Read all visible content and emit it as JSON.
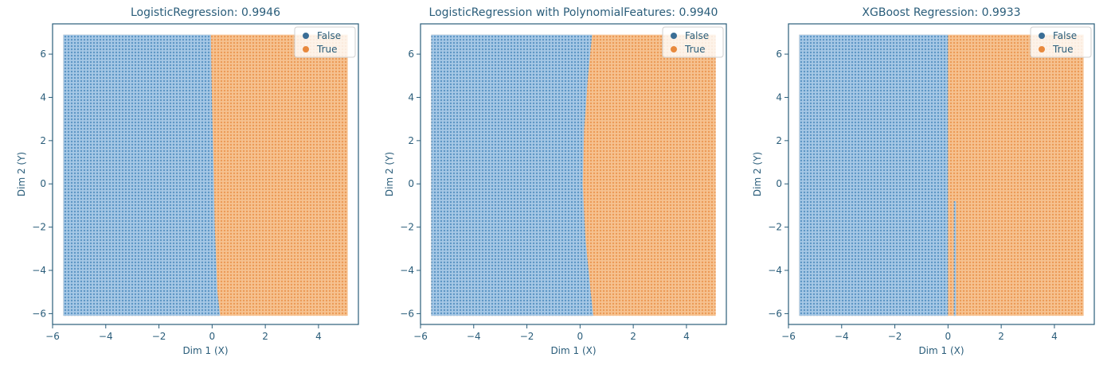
{
  "colors": {
    "false_fill": "#a6c8e6",
    "false_dot": "#3e7fb5",
    "true_fill": "#f6c290",
    "true_dot": "#e8893d",
    "axis": "#2a5d7a",
    "legend_false": "#3b6e96",
    "legend_true": "#e8893d"
  },
  "chart_data": [
    {
      "type": "scatter",
      "title": "LogisticRegression: 0.9946",
      "xlabel": "Dim 1 (X)",
      "ylabel": "Dim 2 (Y)",
      "xlim": [
        -6.0,
        5.5
      ],
      "ylim": [
        -6.5,
        7.4
      ],
      "xticks": [
        -6,
        -4,
        -2,
        0,
        2,
        4
      ],
      "yticks": [
        -6,
        -4,
        -2,
        0,
        2,
        4,
        6
      ],
      "xtick_labels": [
        "−6",
        "−4",
        "−2",
        "0",
        "2",
        "4"
      ],
      "ytick_labels": [
        "−6",
        "−4",
        "−2",
        "0",
        "2",
        "4",
        "6"
      ],
      "grid": false,
      "legend": {
        "position": "top-right",
        "entries": [
          "False",
          "True"
        ]
      },
      "grid_region": {
        "x": [
          -5.6,
          5.1
        ],
        "y": [
          -6.1,
          6.9
        ]
      },
      "boundary": [
        {
          "y": 6.9,
          "x": -0.05
        },
        {
          "y": 3.5,
          "x": 0.0
        },
        {
          "y": 1.0,
          "x": 0.05
        },
        {
          "y": -2.0,
          "x": 0.1
        },
        {
          "y": -5.0,
          "x": 0.2
        },
        {
          "y": -6.1,
          "x": 0.3
        }
      ],
      "series": [
        {
          "name": "False",
          "region": "x < boundary"
        },
        {
          "name": "True",
          "region": "x > boundary"
        }
      ]
    },
    {
      "type": "scatter",
      "title": "LogisticRegression with PolynomialFeatures: 0.9940",
      "xlabel": "Dim 1 (X)",
      "ylabel": "Dim 2 (Y)",
      "xlim": [
        -6.0,
        5.5
      ],
      "ylim": [
        -6.5,
        7.4
      ],
      "xticks": [
        -6,
        -4,
        -2,
        0,
        2,
        4
      ],
      "yticks": [
        -6,
        -4,
        -2,
        0,
        2,
        4,
        6
      ],
      "xtick_labels": [
        "−6",
        "−4",
        "−2",
        "0",
        "2",
        "4"
      ],
      "ytick_labels": [
        "−6",
        "−4",
        "−2",
        "0",
        "2",
        "4",
        "6"
      ],
      "grid": false,
      "legend": {
        "position": "top-right",
        "entries": [
          "False",
          "True"
        ]
      },
      "grid_region": {
        "x": [
          -5.6,
          5.1
        ],
        "y": [
          -6.1,
          6.9
        ]
      },
      "boundary": [
        {
          "y": 6.9,
          "x": 0.45
        },
        {
          "y": 5.0,
          "x": 0.3
        },
        {
          "y": 2.5,
          "x": 0.15
        },
        {
          "y": 0.0,
          "x": 0.1
        },
        {
          "y": -2.5,
          "x": 0.2
        },
        {
          "y": -5.0,
          "x": 0.4
        },
        {
          "y": -6.1,
          "x": 0.5
        }
      ],
      "series": [
        {
          "name": "False",
          "region": "x < boundary"
        },
        {
          "name": "True",
          "region": "x > boundary"
        }
      ]
    },
    {
      "type": "scatter",
      "title": "XGBoost Regression: 0.9933",
      "xlabel": "Dim 1 (X)",
      "ylabel": "Dim 2 (Y)",
      "xlim": [
        -6.0,
        5.5
      ],
      "ylim": [
        -6.5,
        7.4
      ],
      "xticks": [
        -6,
        -4,
        -2,
        0,
        2,
        4
      ],
      "yticks": [
        -6,
        -4,
        -2,
        0,
        2,
        4,
        6
      ],
      "xtick_labels": [
        "−6",
        "−4",
        "−2",
        "0",
        "2",
        "4"
      ],
      "ytick_labels": [
        "−6",
        "−4",
        "−2",
        "0",
        "2",
        "4",
        "6"
      ],
      "grid": false,
      "legend": {
        "position": "top-right",
        "entries": [
          "False",
          "True"
        ]
      },
      "grid_region": {
        "x": [
          -5.6,
          5.1
        ],
        "y": [
          -6.1,
          6.9
        ]
      },
      "boundary": [
        {
          "y": 6.9,
          "x": 0.0
        },
        {
          "y": -6.1,
          "x": 0.0
        }
      ],
      "stripes": [
        {
          "x_from": 0.22,
          "x_to": 0.3,
          "y_from": -6.1,
          "y_to": -0.8,
          "series": "False"
        }
      ],
      "series": [
        {
          "name": "False",
          "region": "x < boundary"
        },
        {
          "name": "True",
          "region": "x > boundary"
        }
      ]
    }
  ]
}
